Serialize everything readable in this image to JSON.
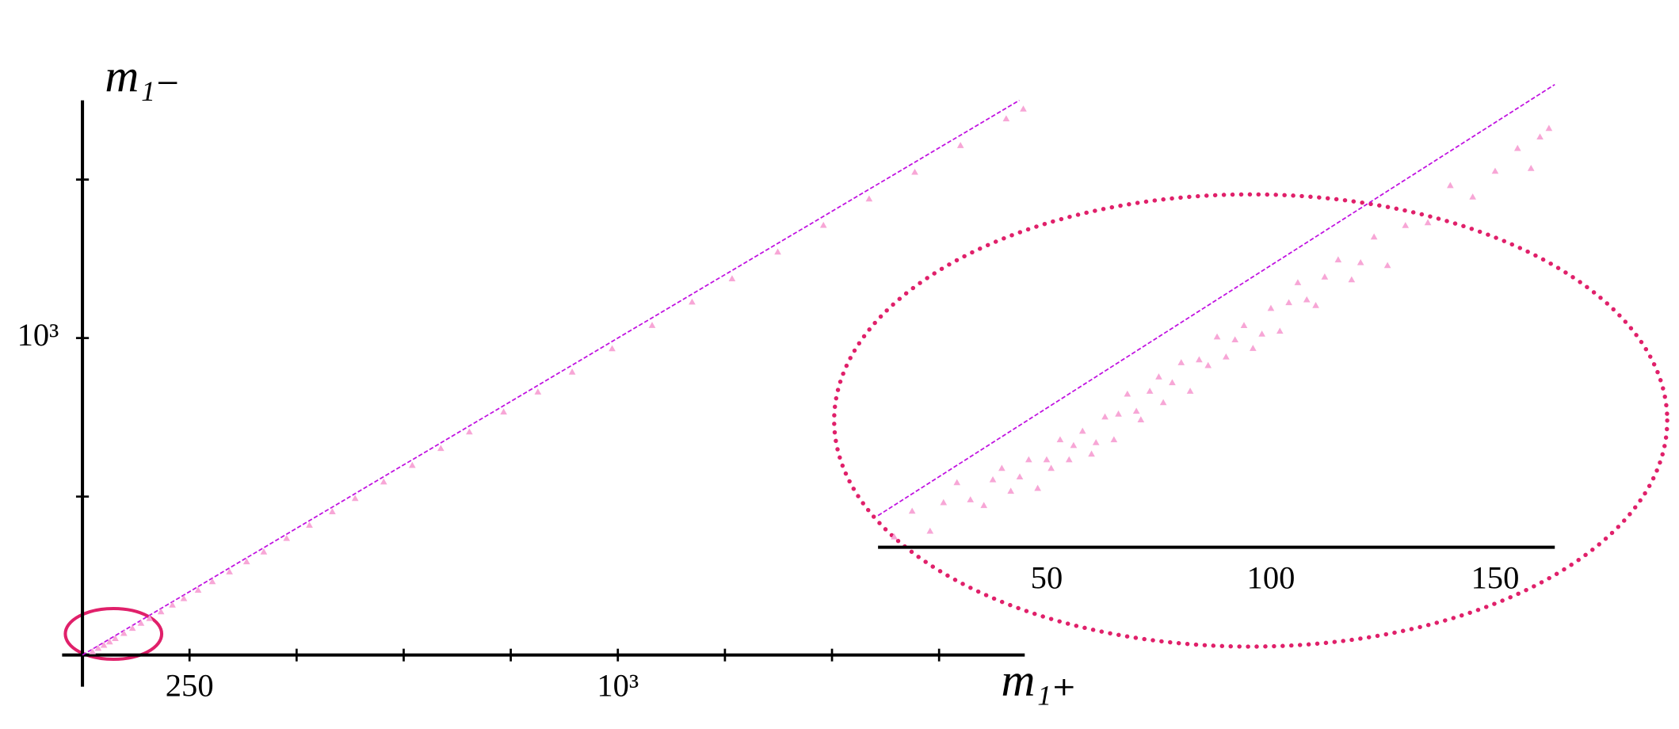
{
  "chart_data": [
    {
      "type": "scatter",
      "xlabel": "m₁₊",
      "ylabel": "m₁₋",
      "xlim": [
        62.5,
        1712.5
      ],
      "ylim": [
        62.5,
        1703
      ],
      "xticks": [
        250,
        {
          "value": 1000,
          "label": "10³"
        }
      ],
      "xminorticks": [
        437.5,
        625,
        812.5,
        1187.5,
        1375,
        1562.5
      ],
      "yticks": [
        {
          "value": 1000,
          "label": "10³"
        }
      ],
      "yminorticks": [
        531.25,
        1468.75
      ],
      "diagonal": true,
      "diagonal_color": "#c010e0",
      "grid": false,
      "series": [
        {
          "color": "#f7a6d6",
          "x": [
            80,
            90,
            100,
            110,
            120,
            135,
            150,
            165,
            180,
            200,
            220,
            240,
            265,
            290,
            320,
            350,
            380,
            420,
            460,
            500,
            540,
            590,
            640,
            690,
            740,
            800,
            860,
            920,
            990,
            1060,
            1130,
            1200,
            1280,
            1360,
            1440,
            1520,
            1600,
            1680,
            1710
          ],
          "values": [
            73,
            83,
            92,
            102,
            112,
            127,
            142,
            157,
            171,
            191,
            211,
            230,
            255,
            280,
            309,
            339,
            368,
            408,
            447,
            487,
            526,
            575,
            624,
            674,
            723,
            782,
            841,
            900,
            969,
            1038,
            1107,
            1176,
            1255,
            1334,
            1412,
            1491,
            1570,
            1649,
            1678
          ]
        }
      ]
    },
    {
      "type": "scatter",
      "xlim": [
        12.4,
        163.3
      ],
      "ylim": [
        1.3,
        163.3
      ],
      "xticks": [
        50,
        100,
        150
      ],
      "diagonal": true,
      "diagonal_color": "#c010e0",
      "grid": false,
      "series": [
        {
          "color": "#f7a6d6",
          "x": [
            16,
            20,
            24,
            27,
            30,
            33,
            36,
            38,
            40,
            42,
            44,
            46,
            48,
            50,
            51,
            53,
            55,
            56,
            58,
            60,
            61,
            63,
            65,
            66,
            68,
            70,
            71,
            73,
            75,
            76,
            78,
            80,
            82,
            84,
            86,
            88,
            90,
            92,
            94,
            96,
            98,
            100,
            102,
            104,
            106,
            108,
            110,
            112,
            115,
            118,
            120,
            123,
            126,
            130,
            135,
            140,
            145,
            150,
            155,
            158,
            160,
            162
          ],
          "values": [
            5,
            14,
            7,
            17,
            24,
            18,
            16,
            25,
            29,
            21,
            26,
            32,
            22,
            32,
            29,
            39,
            32,
            37,
            42,
            34,
            38,
            47,
            39,
            48,
            55,
            49,
            46,
            56,
            61,
            52,
            59,
            66,
            56,
            67,
            65,
            75,
            68,
            74,
            79,
            71,
            76,
            85,
            77,
            87,
            94,
            88,
            86,
            96,
            102,
            95,
            101,
            110,
            100,
            114,
            115,
            128,
            124,
            133,
            141,
            134,
            145,
            148
          ]
        }
      ]
    }
  ]
}
